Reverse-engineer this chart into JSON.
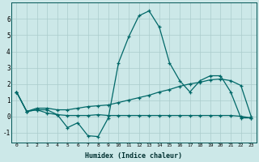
{
  "xlabel": "Humidex (Indice chaleur)",
  "bg_color": "#cce8e8",
  "grid_color": "#aacccc",
  "line_color": "#006868",
  "xlim": [
    -0.5,
    23.5
  ],
  "ylim": [
    -1.6,
    7.0
  ],
  "yticks": [
    -1,
    0,
    1,
    2,
    3,
    4,
    5,
    6
  ],
  "xticks": [
    0,
    1,
    2,
    3,
    4,
    5,
    6,
    7,
    8,
    9,
    10,
    11,
    12,
    13,
    14,
    15,
    16,
    17,
    18,
    19,
    20,
    21,
    22,
    23
  ],
  "s1_x": [
    0,
    1,
    2,
    3,
    4,
    5,
    6,
    7,
    8,
    9,
    10,
    11,
    12,
    13,
    14,
    15,
    16,
    17,
    18,
    19,
    20,
    21,
    22,
    23
  ],
  "s1_y": [
    1.5,
    0.3,
    0.4,
    0.4,
    0.1,
    -0.7,
    -0.4,
    -1.2,
    -1.25,
    -0.1,
    3.3,
    4.9,
    6.2,
    6.5,
    5.5,
    3.3,
    2.2,
    1.5,
    2.2,
    2.5,
    2.5,
    1.5,
    -0.1,
    -0.1
  ],
  "s2_x": [
    0,
    1,
    2,
    3,
    4,
    5,
    6,
    7,
    8,
    9,
    10,
    11,
    12,
    13,
    14,
    15,
    16,
    17,
    18,
    19,
    20,
    21,
    22,
    23
  ],
  "s2_y": [
    1.5,
    0.3,
    0.4,
    0.2,
    0.1,
    0.05,
    0.05,
    0.05,
    0.1,
    0.05,
    0.05,
    0.05,
    0.05,
    0.05,
    0.05,
    0.05,
    0.05,
    0.05,
    0.05,
    0.05,
    0.05,
    0.05,
    0.0,
    -0.1
  ],
  "s3_x": [
    0,
    1,
    2,
    3,
    4,
    5,
    6,
    7,
    8,
    9,
    10,
    11,
    12,
    13,
    14,
    15,
    16,
    17,
    18,
    19,
    20,
    21,
    22,
    23
  ],
  "s3_y": [
    1.5,
    0.3,
    0.5,
    0.5,
    0.4,
    0.4,
    0.5,
    0.6,
    0.65,
    0.7,
    0.85,
    1.0,
    1.15,
    1.3,
    1.5,
    1.65,
    1.85,
    2.0,
    2.1,
    2.25,
    2.3,
    2.2,
    1.9,
    0.0
  ]
}
